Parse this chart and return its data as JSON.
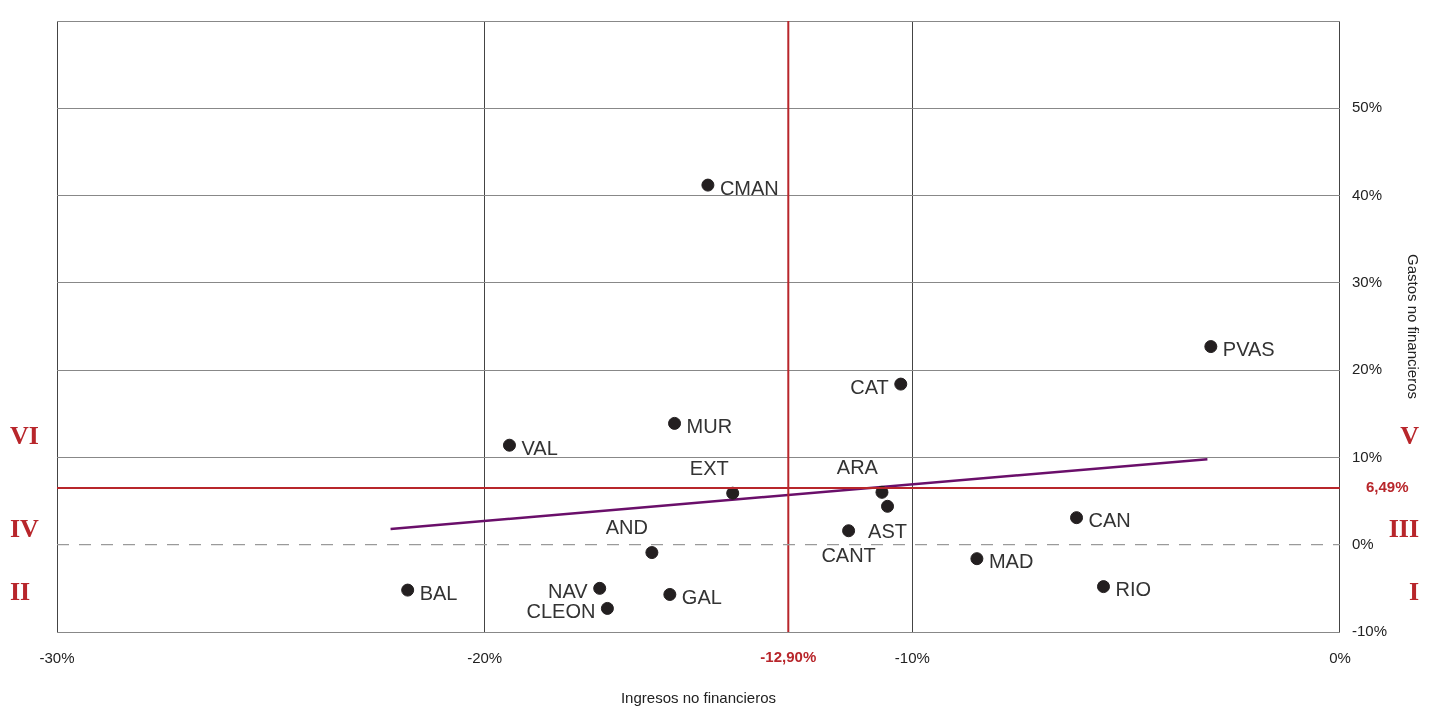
{
  "chart_data": {
    "type": "scatter",
    "xlabel": "Ingresos no financieros",
    "ylabel": "Gastos no financieros",
    "xlim": [
      -30,
      0
    ],
    "xticks": [
      {
        "value": -30,
        "label": "-30%"
      },
      {
        "value": -20,
        "label": "-20%"
      },
      {
        "value": -10,
        "label": "-10%"
      },
      {
        "value": 0,
        "label": "0%"
      }
    ],
    "ylim": [
      -10,
      60
    ],
    "yticks": [
      {
        "value": -10,
        "label": "-10%"
      },
      {
        "value": 0,
        "label": "0%"
      },
      {
        "value": 10,
        "label": "10%"
      },
      {
        "value": 20,
        "label": "20%"
      },
      {
        "value": 30,
        "label": "30%"
      },
      {
        "value": 40,
        "label": "40%"
      },
      {
        "value": 50,
        "label": "50%"
      },
      {
        "value": 60,
        "label": null
      }
    ],
    "grid": true,
    "series": [
      {
        "color": "#231f20",
        "marker": "circle",
        "x": [
          -14.78,
          -3.02,
          -10.27,
          -19.42,
          -15.56,
          -10.71,
          -14.2,
          -10.58,
          -11.49,
          -6.16,
          -16.09,
          -8.49,
          -21.8,
          -17.31,
          -15.67,
          -17.13,
          -5.53
        ],
        "values": [
          41.2,
          22.7,
          18.4,
          11.4,
          13.9,
          6.0,
          5.9,
          4.4,
          1.6,
          3.1,
          -0.9,
          -1.6,
          -5.2,
          -5.0,
          -5.7,
          -7.3,
          -4.8
        ]
      },
      {
        "type": "line",
        "color": "#6a0f6a",
        "x": [
          -22.2,
          -3.1
        ],
        "values": [
          1.8,
          9.8
        ]
      }
    ],
    "ref_lines": [
      {
        "axis": "x",
        "value": -12.9,
        "label": "-12,90%",
        "color": "#b8262b"
      },
      {
        "axis": "y",
        "value": 6.49,
        "label": "6,49%",
        "color": "#b8262b"
      },
      {
        "axis": "y",
        "value": 0,
        "color": "#9a9a9a",
        "line_style": "dashed"
      }
    ],
    "annotations": [
      {
        "text": "CMAN",
        "x": -14.78,
        "y": 41.2
      },
      {
        "text": "PVAS",
        "x": -3.02,
        "y": 22.7
      },
      {
        "text": "CAT",
        "x": -10.27,
        "y": 18.4
      },
      {
        "text": "VAL",
        "x": -19.42,
        "y": 11.4
      },
      {
        "text": "MUR",
        "x": -15.56,
        "y": 13.9
      },
      {
        "text": "ARA",
        "x": -10.71,
        "y": 6.0
      },
      {
        "text": "EXT",
        "x": -14.2,
        "y": 5.9
      },
      {
        "text": "AST",
        "x": -10.58,
        "y": 4.4
      },
      {
        "text": "CANT",
        "x": -11.49,
        "y": 1.6
      },
      {
        "text": "CAN",
        "x": -6.16,
        "y": 3.1
      },
      {
        "text": "AND",
        "x": -16.09,
        "y": -0.9
      },
      {
        "text": "MAD",
        "x": -8.49,
        "y": -1.6
      },
      {
        "text": "BAL",
        "x": -21.8,
        "y": -5.2
      },
      {
        "text": "NAV",
        "x": -17.31,
        "y": -5.0
      },
      {
        "text": "GAL",
        "x": -15.67,
        "y": -5.7
      },
      {
        "text": "CLEON",
        "x": -17.13,
        "y": -7.3
      },
      {
        "text": "RIO",
        "x": -5.53,
        "y": -4.8
      },
      "VI",
      "V",
      "IV",
      "III",
      "II",
      "I"
    ]
  }
}
